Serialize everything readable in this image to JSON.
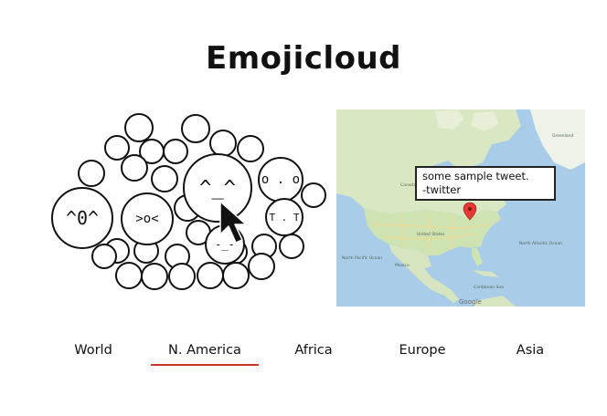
{
  "app": {
    "title": "Emojicloud"
  },
  "emoji_cloud": {
    "bubbles": [
      {
        "label": "^0^",
        "size": "xl"
      },
      {
        "label": ">o<",
        "size": "l"
      },
      {
        "label": "^_^",
        "size": "xl"
      },
      {
        "label": "o . o",
        "size": "m"
      },
      {
        "label": "T . T",
        "size": "s"
      },
      {
        "label": "-_-",
        "size": "s"
      }
    ]
  },
  "map": {
    "tweet": {
      "text": "some sample tweet.",
      "source": "-twitter"
    },
    "watermark": "Google",
    "place_labels": [
      "United States",
      "Canada",
      "Mexico",
      "North Atlantic Ocean",
      "North Pacific Ocean",
      "Greenland",
      "Caribbean Sea"
    ],
    "colors": {
      "water": "#a9cde9",
      "land": "#d9e8c3",
      "marker": "#e53935"
    }
  },
  "region_tabs": {
    "items": [
      "World",
      "N. America",
      "Africa",
      "Europe",
      "Asia"
    ],
    "selected": "N. America",
    "underline_color": "#d8322d"
  }
}
